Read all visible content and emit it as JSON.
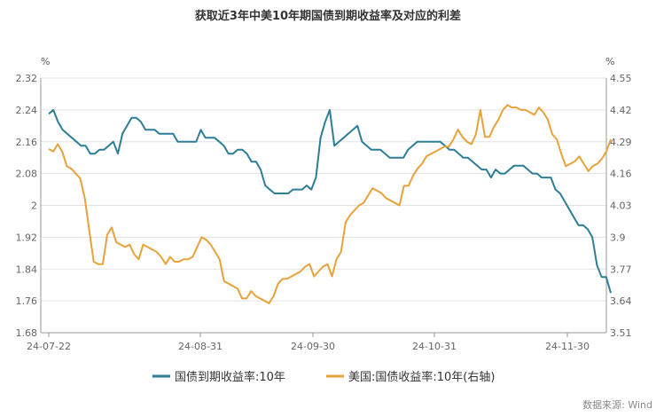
{
  "chart_data": {
    "type": "line",
    "title": "获取近3年中美10年期国债到期收益率及对应的利差",
    "left_unit": "%",
    "right_unit": "%",
    "x_ticks": [
      "24-07-22",
      "24-08-31",
      "24-09-30",
      "24-10-31",
      "24-11-30"
    ],
    "y_left": {
      "min": 1.68,
      "max": 2.32,
      "ticks": [
        "2.32",
        "2.24",
        "2.16",
        "2.08",
        "2",
        "1.92",
        "1.84",
        "1.76",
        "1.68"
      ]
    },
    "y_right": {
      "min": 3.51,
      "max": 4.55,
      "ticks": [
        "4.55",
        "4.42",
        "4.29",
        "4.16",
        "4.03",
        "3.9",
        "3.77",
        "3.64",
        "3.51"
      ]
    },
    "grid": "horizontal",
    "legend_position": "bottom",
    "source": "数据来源: Wind",
    "series": [
      {
        "name": "国债到期收益率:10年",
        "color": "#2e7d96",
        "axis": "left",
        "values": [
          2.23,
          2.24,
          2.21,
          2.19,
          2.18,
          2.17,
          2.16,
          2.15,
          2.15,
          2.13,
          2.13,
          2.14,
          2.14,
          2.15,
          2.16,
          2.13,
          2.18,
          2.2,
          2.22,
          2.22,
          2.21,
          2.19,
          2.19,
          2.19,
          2.18,
          2.18,
          2.18,
          2.18,
          2.16,
          2.16,
          2.16,
          2.16,
          2.16,
          2.19,
          2.17,
          2.17,
          2.17,
          2.16,
          2.15,
          2.13,
          2.13,
          2.14,
          2.14,
          2.13,
          2.11,
          2.11,
          2.09,
          2.05,
          2.04,
          2.03,
          2.03,
          2.03,
          2.03,
          2.04,
          2.04,
          2.04,
          2.05,
          2.04,
          2.07,
          2.17,
          2.21,
          2.24,
          2.15,
          2.16,
          2.17,
          2.18,
          2.19,
          2.2,
          2.16,
          2.15,
          2.14,
          2.14,
          2.14,
          2.13,
          2.12,
          2.12,
          2.12,
          2.12,
          2.14,
          2.15,
          2.16,
          2.16,
          2.16,
          2.16,
          2.16,
          2.16,
          2.15,
          2.14,
          2.14,
          2.13,
          2.12,
          2.12,
          2.11,
          2.1,
          2.09,
          2.09,
          2.07,
          2.09,
          2.08,
          2.08,
          2.09,
          2.1,
          2.1,
          2.1,
          2.09,
          2.08,
          2.08,
          2.07,
          2.07,
          2.07,
          2.04,
          2.03,
          2.01,
          1.99,
          1.97,
          1.95,
          1.95,
          1.94,
          1.92,
          1.85,
          1.82,
          1.82,
          1.78
        ]
      },
      {
        "name": "美国:国债收益率:10年(右轴)",
        "color": "#e8a23a",
        "axis": "right",
        "values": [
          4.26,
          4.25,
          4.28,
          4.25,
          4.19,
          4.18,
          4.16,
          4.14,
          4.06,
          3.93,
          3.8,
          3.79,
          3.79,
          3.91,
          3.94,
          3.88,
          3.87,
          3.86,
          3.87,
          3.83,
          3.81,
          3.87,
          3.86,
          3.85,
          3.84,
          3.82,
          3.79,
          3.82,
          3.8,
          3.8,
          3.81,
          3.81,
          3.82,
          3.86,
          3.9,
          3.89,
          3.87,
          3.84,
          3.81,
          3.72,
          3.71,
          3.7,
          3.69,
          3.65,
          3.65,
          3.68,
          3.66,
          3.65,
          3.64,
          3.63,
          3.66,
          3.71,
          3.73,
          3.73,
          3.74,
          3.75,
          3.76,
          3.78,
          3.79,
          3.74,
          3.76,
          3.78,
          3.79,
          3.74,
          3.81,
          3.84,
          3.96,
          3.99,
          4.01,
          4.03,
          4.04,
          4.07,
          4.1,
          4.09,
          4.08,
          4.06,
          4.05,
          4.04,
          4.03,
          4.11,
          4.11,
          4.15,
          4.18,
          4.2,
          4.23,
          4.24,
          4.25,
          4.26,
          4.27,
          4.27,
          4.3,
          4.34,
          4.31,
          4.29,
          4.28,
          4.32,
          4.42,
          4.31,
          4.31,
          4.35,
          4.38,
          4.42,
          4.44,
          4.43,
          4.43,
          4.42,
          4.42,
          4.41,
          4.4,
          4.43,
          4.41,
          4.38,
          4.32,
          4.3,
          4.24,
          4.19,
          4.2,
          4.21,
          4.23,
          4.2,
          4.17,
          4.19,
          4.2,
          4.22,
          4.25,
          4.3
        ]
      }
    ]
  }
}
